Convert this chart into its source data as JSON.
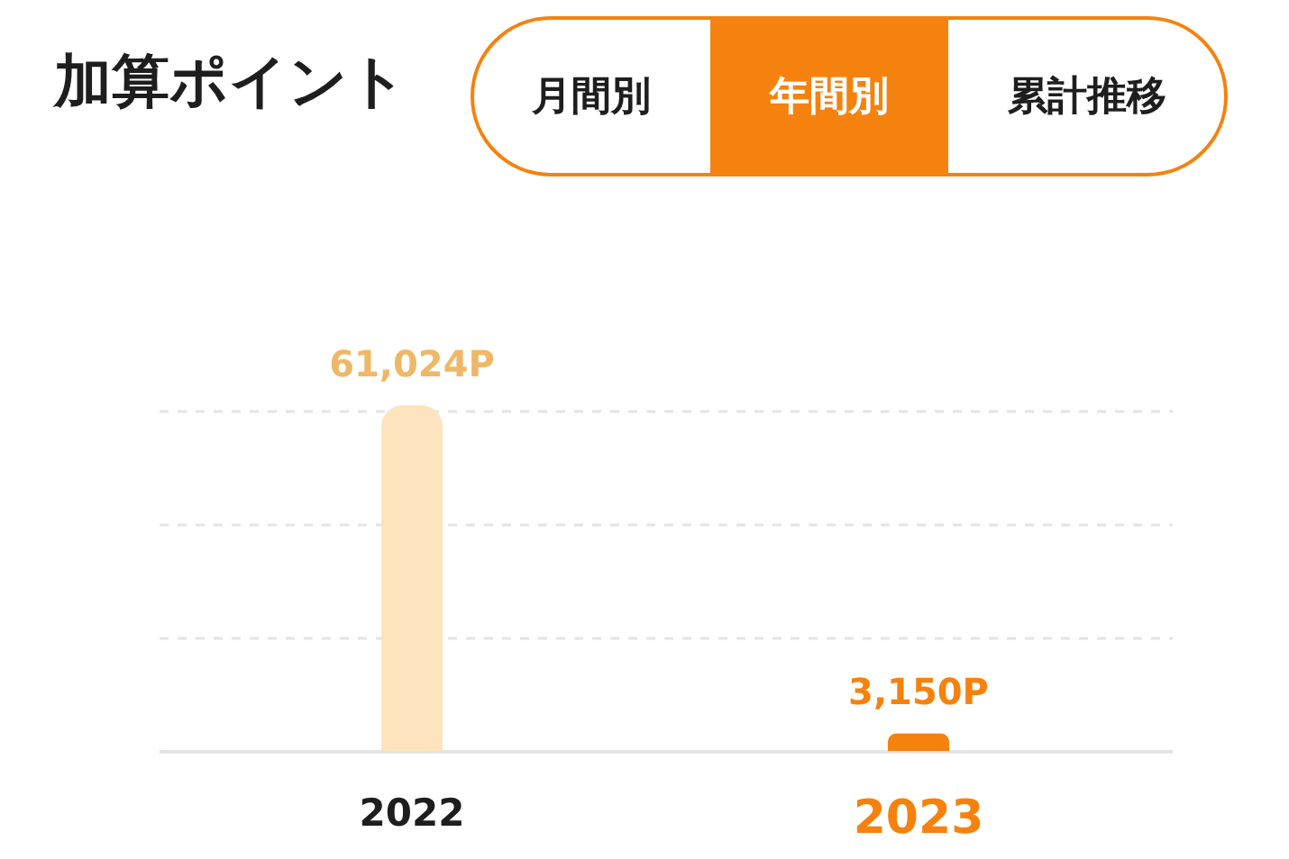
{
  "chart_data": {
    "type": "bar",
    "title": "加算ポイント",
    "categories": [
      "2022",
      "2023"
    ],
    "values": [
      61024,
      3150
    ],
    "colors": [
      "#fde4bf",
      "#f5820f"
    ],
    "value_labels": [
      "61,024P",
      "3,150P"
    ],
    "ylim": [
      0,
      61024
    ],
    "yticks": [
      {
        "value": 20000,
        "label": null
      },
      {
        "value": 40000,
        "label": null
      },
      {
        "value": 60000,
        "label": null
      }
    ],
    "grid": "y",
    "tick_labels": "x",
    "annotations": [
      "月間別",
      "年間別",
      "累計推移"
    ]
  }
}
